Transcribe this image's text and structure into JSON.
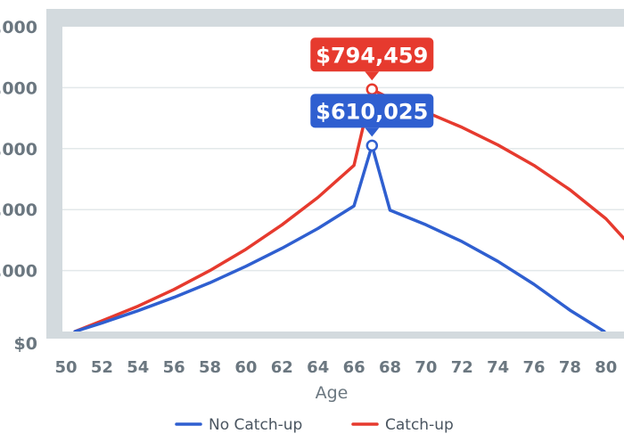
{
  "chart_data": {
    "type": "line",
    "title": "",
    "xlabel": "Age",
    "ylabel": "",
    "xlim": [
      50,
      81
    ],
    "ylim": [
      0,
      1000000
    ],
    "x_ticks": [
      "50",
      "52",
      "54",
      "56",
      "58",
      "60",
      "62",
      "64",
      "66",
      "68",
      "70",
      "72",
      "74",
      "76",
      "78",
      "80",
      "8"
    ],
    "y_ticks": [
      ",000",
      ",000",
      ",000",
      ",000",
      ",000",
      "$0"
    ],
    "y_tick_values": [
      1000000,
      800000,
      600000,
      400000,
      200000,
      0
    ],
    "grid": true,
    "legend_position": "bottom",
    "colors": {
      "no_catchup": "#2f5fd0",
      "catchup": "#e63a2e",
      "frame": "#d3dade",
      "grid": "#e3e8ea"
    },
    "series": [
      {
        "name": "No Catch-up",
        "x": [
          50.5,
          52,
          54,
          56,
          58,
          60,
          62,
          64,
          66,
          67,
          68,
          70,
          72,
          74,
          76,
          78,
          79.9
        ],
        "values": [
          0,
          28000,
          68000,
          112000,
          160000,
          214000,
          273000,
          338000,
          412000,
          610025,
          398000,
          350000,
          295000,
          230000,
          155000,
          70000,
          0
        ]
      },
      {
        "name": "Catch-up",
        "x": [
          50.5,
          52,
          54,
          56,
          58,
          60,
          62,
          64,
          66,
          67,
          68,
          70,
          72,
          74,
          76,
          78,
          80,
          81
        ],
        "values": [
          0,
          35000,
          83000,
          138000,
          200000,
          270000,
          350000,
          440000,
          545000,
          794459,
          765000,
          720000,
          670000,
          612000,
          545000,
          465000,
          370000,
          305000
        ]
      }
    ],
    "annotations": [
      {
        "series": "Catch-up",
        "x": 67,
        "label": "$794,459"
      },
      {
        "series": "No Catch-up",
        "x": 67,
        "label": "$610,025"
      }
    ]
  }
}
